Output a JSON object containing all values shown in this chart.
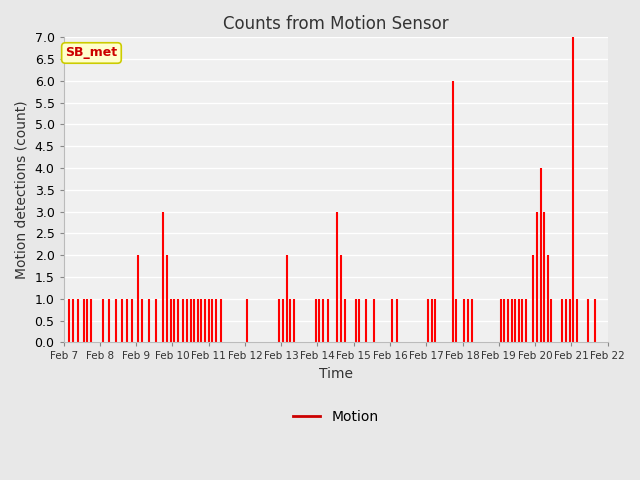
{
  "title": "Counts from Motion Sensor",
  "xlabel": "Time",
  "ylabel": "Motion detections (count)",
  "legend_label": "Motion",
  "legend_line_color": "#cc0000",
  "bar_color": "#ff0000",
  "ylim": [
    0,
    7.0
  ],
  "yticks": [
    0.0,
    0.5,
    1.0,
    1.5,
    2.0,
    2.5,
    3.0,
    3.5,
    4.0,
    4.5,
    5.0,
    5.5,
    6.0,
    6.5,
    7.0
  ],
  "plot_bg_color": "#f0f0f0",
  "fig_bg_color": "#e8e8e8",
  "grid_color": "#ffffff",
  "annotation_text": "SB_met",
  "annotation_color": "#cc0000",
  "annotation_bg": "#ffffcc",
  "annotation_border": "#cccc00",
  "start_day": 7,
  "end_day": 22,
  "data_points": [
    [
      7.15,
      1
    ],
    [
      7.25,
      1
    ],
    [
      7.4,
      1
    ],
    [
      7.55,
      1
    ],
    [
      7.65,
      1
    ],
    [
      7.75,
      1
    ],
    [
      8.1,
      1
    ],
    [
      8.25,
      1
    ],
    [
      8.45,
      1
    ],
    [
      8.6,
      1
    ],
    [
      8.75,
      1
    ],
    [
      8.9,
      1
    ],
    [
      9.05,
      2
    ],
    [
      9.15,
      1
    ],
    [
      9.35,
      1
    ],
    [
      9.55,
      1
    ],
    [
      9.75,
      3
    ],
    [
      9.85,
      2
    ],
    [
      9.95,
      1
    ],
    [
      10.05,
      1
    ],
    [
      10.15,
      1
    ],
    [
      10.3,
      1
    ],
    [
      10.4,
      1
    ],
    [
      10.5,
      1
    ],
    [
      10.6,
      1
    ],
    [
      10.7,
      1
    ],
    [
      10.8,
      1
    ],
    [
      10.9,
      1
    ],
    [
      11.0,
      1
    ],
    [
      11.1,
      1
    ],
    [
      11.2,
      1
    ],
    [
      11.35,
      1
    ],
    [
      12.05,
      1
    ],
    [
      12.95,
      1
    ],
    [
      13.05,
      1
    ],
    [
      13.15,
      2
    ],
    [
      13.25,
      1
    ],
    [
      13.35,
      1
    ],
    [
      13.95,
      1
    ],
    [
      14.05,
      1
    ],
    [
      14.15,
      1
    ],
    [
      14.3,
      1
    ],
    [
      14.55,
      3
    ],
    [
      14.65,
      2
    ],
    [
      14.75,
      1
    ],
    [
      15.05,
      1
    ],
    [
      15.15,
      1
    ],
    [
      15.35,
      1
    ],
    [
      15.55,
      1
    ],
    [
      16.05,
      1
    ],
    [
      16.2,
      1
    ],
    [
      17.05,
      1
    ],
    [
      17.15,
      1
    ],
    [
      17.25,
      1
    ],
    [
      17.75,
      6
    ],
    [
      17.82,
      1
    ],
    [
      18.05,
      1
    ],
    [
      18.15,
      1
    ],
    [
      18.25,
      1
    ],
    [
      19.05,
      1
    ],
    [
      19.15,
      1
    ],
    [
      19.25,
      1
    ],
    [
      19.35,
      1
    ],
    [
      19.45,
      1
    ],
    [
      19.55,
      1
    ],
    [
      19.65,
      1
    ],
    [
      19.75,
      1
    ],
    [
      19.95,
      2
    ],
    [
      20.05,
      3
    ],
    [
      20.15,
      4
    ],
    [
      20.25,
      3
    ],
    [
      20.35,
      2
    ],
    [
      20.45,
      1
    ],
    [
      20.75,
      1
    ],
    [
      20.85,
      1
    ],
    [
      20.95,
      1
    ],
    [
      21.05,
      7
    ],
    [
      21.15,
      1
    ],
    [
      21.45,
      1
    ],
    [
      21.65,
      1
    ]
  ]
}
